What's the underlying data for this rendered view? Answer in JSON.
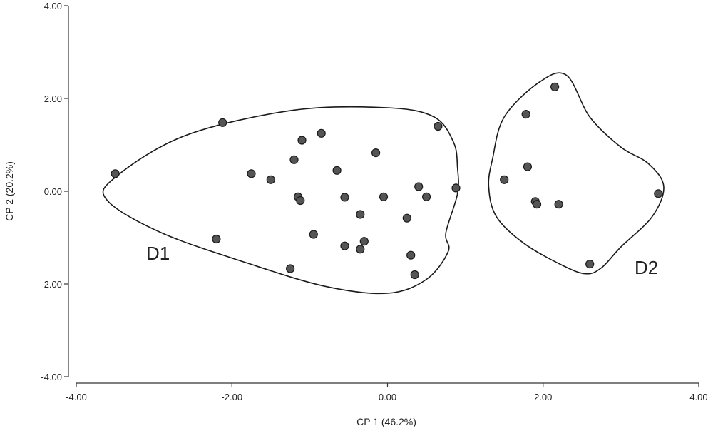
{
  "chart_data": {
    "type": "scatter",
    "xlabel": "CP 1 (46.2%)",
    "ylabel": "CP 2 (20.2%)",
    "xlim": [
      -4,
      4
    ],
    "ylim": [
      -4,
      4
    ],
    "xticks": [
      -4,
      -2,
      0,
      2,
      4
    ],
    "yticks": [
      -4,
      -2,
      0,
      2,
      4
    ],
    "xtick_labels": [
      "-4.00",
      "-2.00",
      "0.00",
      "2.00",
      "4.00"
    ],
    "ytick_labels": [
      "-4.00",
      "-2.00",
      "0.00",
      "2.00",
      "4.00"
    ],
    "grid": false,
    "point_color": "#555555",
    "groups": [
      {
        "name": "D1",
        "points": [
          [
            -3.5,
            0.38
          ],
          [
            -2.12,
            1.48
          ],
          [
            -2.2,
            -1.03
          ],
          [
            -1.75,
            0.38
          ],
          [
            -1.5,
            0.25
          ],
          [
            -1.25,
            -1.67
          ],
          [
            -1.2,
            0.68
          ],
          [
            -1.15,
            -0.12
          ],
          [
            -1.12,
            -0.2
          ],
          [
            -1.1,
            1.1
          ],
          [
            -0.85,
            1.25
          ],
          [
            -0.95,
            -0.93
          ],
          [
            -0.65,
            0.45
          ],
          [
            -0.55,
            -0.13
          ],
          [
            -0.55,
            -1.18
          ],
          [
            -0.35,
            -0.5
          ],
          [
            -0.35,
            -1.25
          ],
          [
            -0.3,
            -1.08
          ],
          [
            -0.15,
            0.83
          ],
          [
            -0.05,
            -0.12
          ],
          [
            0.25,
            -0.58
          ],
          [
            0.3,
            -1.38
          ],
          [
            0.35,
            -1.8
          ],
          [
            0.4,
            0.1
          ],
          [
            0.5,
            -0.12
          ],
          [
            0.65,
            1.4
          ],
          [
            0.88,
            0.07
          ]
        ]
      },
      {
        "name": "D2",
        "points": [
          [
            1.5,
            0.25
          ],
          [
            1.78,
            1.66
          ],
          [
            1.8,
            0.53
          ],
          [
            1.9,
            -0.22
          ],
          [
            1.92,
            -0.28
          ],
          [
            2.15,
            2.25
          ],
          [
            2.2,
            -0.28
          ],
          [
            2.6,
            -1.57
          ],
          [
            3.48,
            -0.05
          ]
        ]
      }
    ],
    "hulls": [
      [
        [
          -3.5,
          0.3
        ],
        [
          -2.6,
          1.2
        ],
        [
          -1.2,
          1.75
        ],
        [
          0.0,
          1.8
        ],
        [
          0.6,
          1.6
        ],
        [
          0.85,
          1.05
        ],
        [
          0.9,
          0.5
        ],
        [
          0.9,
          -0.05
        ],
        [
          0.75,
          -0.9
        ],
        [
          0.78,
          -1.3
        ],
        [
          0.5,
          -1.9
        ],
        [
          0.0,
          -2.2
        ],
        [
          -0.8,
          -2.05
        ],
        [
          -1.8,
          -1.55
        ],
        [
          -2.9,
          -0.9
        ],
        [
          -3.6,
          -0.2
        ]
      ],
      [
        [
          1.35,
          0.7
        ],
        [
          1.5,
          1.6
        ],
        [
          1.95,
          2.35
        ],
        [
          2.3,
          2.5
        ],
        [
          2.6,
          1.6
        ],
        [
          3.0,
          0.95
        ],
        [
          3.35,
          0.6
        ],
        [
          3.55,
          0.1
        ],
        [
          3.4,
          -0.55
        ],
        [
          3.0,
          -1.2
        ],
        [
          2.75,
          -1.65
        ],
        [
          2.55,
          -1.78
        ],
        [
          2.25,
          -1.6
        ],
        [
          1.75,
          -1.12
        ],
        [
          1.4,
          -0.55
        ],
        [
          1.3,
          0.1
        ]
      ]
    ]
  }
}
